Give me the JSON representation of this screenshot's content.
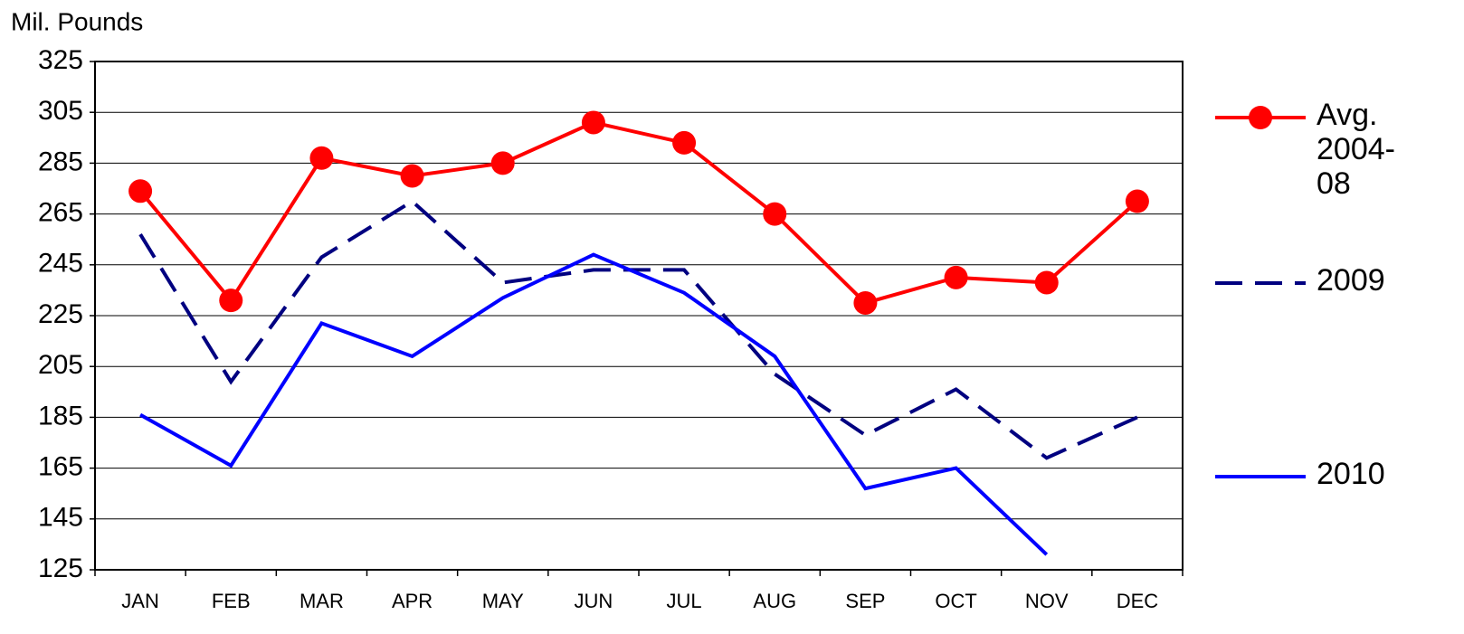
{
  "chart_data": {
    "type": "line",
    "y_label": "Mil. Pounds",
    "categories": [
      "JAN",
      "FEB",
      "MAR",
      "APR",
      "MAY",
      "JUN",
      "JUL",
      "AUG",
      "SEP",
      "OCT",
      "NOV",
      "DEC"
    ],
    "series": [
      {
        "name": "Avg. 2004-08",
        "color": "#ff0000",
        "dashed": false,
        "marker": true,
        "values": [
          274,
          231,
          287,
          280,
          285,
          301,
          293,
          265,
          230,
          240,
          238,
          270
        ]
      },
      {
        "name": "2009",
        "color": "#000080",
        "dashed": true,
        "marker": false,
        "values": [
          257,
          199,
          248,
          270,
          238,
          243,
          243,
          202,
          178,
          196,
          169,
          185
        ]
      },
      {
        "name": "2010",
        "color": "#0000ff",
        "dashed": false,
        "marker": false,
        "values": [
          186,
          166,
          222,
          209,
          232,
          249,
          234,
          209,
          157,
          165,
          131,
          null
        ]
      }
    ],
    "ylim": [
      125,
      325
    ],
    "yticks": [
      125,
      145,
      165,
      185,
      205,
      225,
      245,
      265,
      285,
      305,
      325
    ],
    "grid": true
  }
}
